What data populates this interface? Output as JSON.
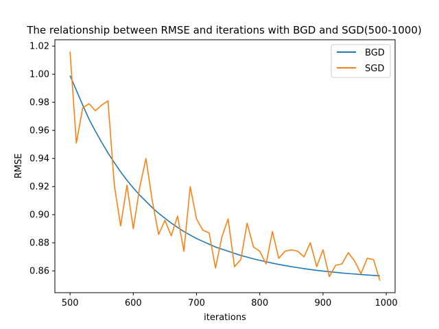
{
  "chart_data": {
    "type": "line",
    "title": "The relationship between RMSE and iterations with BGD and SGD(500-1000)",
    "xlabel": "iterations",
    "ylabel": "RMSE",
    "xlim": [
      476,
      1014
    ],
    "ylim": [
      0.8445,
      1.0245
    ],
    "xticks": [
      500,
      600,
      700,
      800,
      900,
      1000
    ],
    "yticks": [
      0.86,
      0.88,
      0.9,
      0.92,
      0.94,
      0.96,
      0.98,
      1.0,
      1.02
    ],
    "ytick_labels": [
      "0.86",
      "0.88",
      "0.90",
      "0.92",
      "0.94",
      "0.96",
      "0.98",
      "1.00",
      "1.02"
    ],
    "legend_position": "top-right",
    "grid": false,
    "x": [
      500,
      510,
      520,
      530,
      540,
      550,
      560,
      570,
      580,
      590,
      600,
      610,
      620,
      630,
      640,
      650,
      660,
      670,
      680,
      690,
      700,
      710,
      720,
      730,
      740,
      750,
      760,
      770,
      780,
      790,
      800,
      810,
      820,
      830,
      840,
      850,
      860,
      870,
      880,
      890,
      900,
      910,
      920,
      930,
      940,
      950,
      960,
      970,
      980,
      990
    ],
    "series": [
      {
        "name": "BGD",
        "color": "#1f77b4",
        "values": [
          0.999,
          0.9885,
          0.978,
          0.968,
          0.9595,
          0.9515,
          0.944,
          0.937,
          0.9305,
          0.9245,
          0.919,
          0.914,
          0.9095,
          0.905,
          0.901,
          0.8975,
          0.894,
          0.891,
          0.888,
          0.8855,
          0.883,
          0.881,
          0.879,
          0.877,
          0.8755,
          0.874,
          0.8725,
          0.871,
          0.8698,
          0.8686,
          0.8675,
          0.8665,
          0.8655,
          0.8646,
          0.8638,
          0.863,
          0.8623,
          0.8616,
          0.861,
          0.8604,
          0.8599,
          0.8594,
          0.859,
          0.8585,
          0.8581,
          0.8578,
          0.8574,
          0.8571,
          0.8568,
          0.8565
        ]
      },
      {
        "name": "SGD",
        "color": "#ff7f0e",
        "values": [
          1.016,
          0.951,
          0.976,
          0.979,
          0.974,
          0.978,
          0.981,
          0.921,
          0.892,
          0.921,
          0.89,
          0.919,
          0.94,
          0.91,
          0.886,
          0.896,
          0.885,
          0.899,
          0.874,
          0.92,
          0.897,
          0.889,
          0.887,
          0.862,
          0.884,
          0.897,
          0.863,
          0.868,
          0.894,
          0.877,
          0.874,
          0.865,
          0.888,
          0.869,
          0.874,
          0.875,
          0.874,
          0.87,
          0.88,
          0.863,
          0.875,
          0.856,
          0.864,
          0.865,
          0.873,
          0.867,
          0.858,
          0.869,
          0.868,
          0.853
        ]
      }
    ]
  }
}
